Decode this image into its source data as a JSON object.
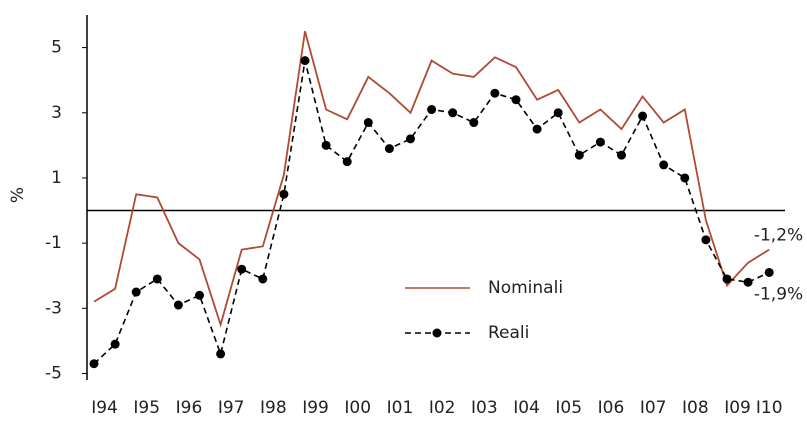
{
  "chart_data": {
    "type": "line",
    "y_label": "%",
    "categories": [
      "I94",
      null,
      "I95",
      null,
      "I96",
      null,
      "I97",
      null,
      "I98",
      null,
      "I99",
      null,
      "I00",
      null,
      "I01",
      null,
      "I02",
      null,
      "I03",
      null,
      "I04",
      null,
      "I05",
      null,
      "I06",
      null,
      "I07",
      null,
      "I08",
      null,
      "I09",
      null,
      "I10"
    ],
    "series": [
      {
        "name": "Nominali",
        "color": "#b04a36",
        "dashed": false,
        "markers": false,
        "values": [
          -2.8,
          -2.4,
          0.5,
          0.4,
          -1.0,
          -1.5,
          -3.5,
          -1.2,
          -1.1,
          1.1,
          5.5,
          3.1,
          2.8,
          4.1,
          3.6,
          3.0,
          4.6,
          4.2,
          4.1,
          4.7,
          4.4,
          3.4,
          3.7,
          2.7,
          3.1,
          2.5,
          3.5,
          2.7,
          3.1,
          -0.3,
          -2.3,
          -1.6,
          -1.2
        ],
        "value_labels": [
          null,
          null,
          null,
          null,
          null,
          null,
          null,
          null,
          null,
          null,
          null,
          null,
          null,
          null,
          null,
          null,
          null,
          null,
          null,
          null,
          null,
          null,
          null,
          null,
          null,
          null,
          null,
          null,
          null,
          null,
          null,
          null,
          "-1,2%"
        ]
      },
      {
        "name": "Reali",
        "color": "#000000",
        "dashed": true,
        "markers": true,
        "values": [
          -4.7,
          -4.1,
          -2.5,
          -2.1,
          -2.9,
          -2.6,
          -4.4,
          -1.8,
          -2.1,
          0.5,
          4.6,
          2.0,
          1.5,
          2.7,
          1.9,
          2.2,
          3.1,
          3.0,
          2.7,
          3.6,
          3.4,
          2.5,
          3.0,
          1.7,
          2.1,
          1.7,
          2.9,
          1.4,
          1.0,
          -0.9,
          -2.1,
          -2.2,
          -1.9
        ],
        "value_labels": [
          null,
          null,
          null,
          null,
          null,
          null,
          null,
          null,
          null,
          null,
          null,
          null,
          null,
          null,
          null,
          null,
          null,
          null,
          null,
          null,
          null,
          null,
          null,
          null,
          null,
          null,
          null,
          null,
          null,
          null,
          null,
          null,
          "-1,9%"
        ]
      }
    ],
    "ylim": [
      -5.2,
      6.0
    ],
    "yticks": [
      -5,
      -3,
      -1,
      1,
      3,
      5
    ],
    "grid": false
  }
}
